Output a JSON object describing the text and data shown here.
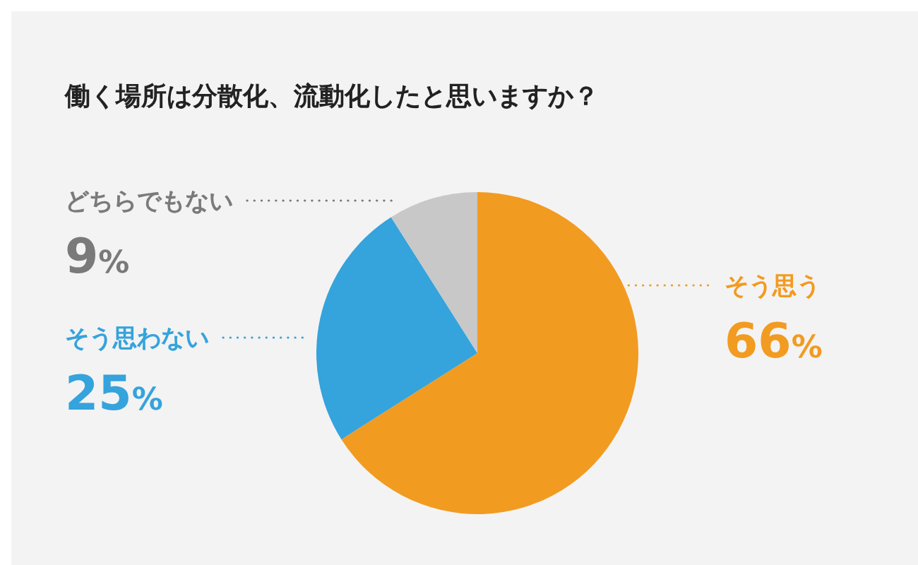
{
  "chart_data": {
    "type": "pie",
    "title": "働く場所は分散化、流動化したと思いますか？",
    "categories": [
      "そう思う",
      "そう思わない",
      "どちらでもない"
    ],
    "values": [
      66,
      25,
      9
    ],
    "value_labels": [
      "66%",
      "25%",
      "9%"
    ],
    "colors": [
      "#f29b21",
      "#35a3dc",
      "#c8c8c8"
    ]
  }
}
